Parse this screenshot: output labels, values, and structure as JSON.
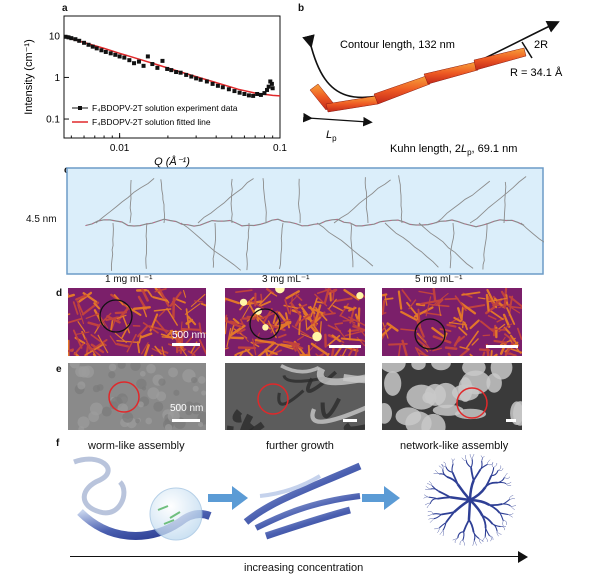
{
  "panels": {
    "a": {
      "label": "a",
      "chart_data": {
        "type": "scatter",
        "xscale": "log",
        "yscale": "log",
        "xlim": [
          0.0045,
          0.1
        ],
        "ylim": [
          0.035,
          30
        ],
        "xlabel": "Q (Å⁻¹)",
        "ylabel": "Intensity (cm⁻¹)",
        "xticks": [
          "0.01",
          "0.1"
        ],
        "yticks": [
          "0.1",
          "1",
          "10"
        ],
        "series": [
          {
            "name": "F₄BDOPV-2T solution experiment data",
            "color": "#111111",
            "x": [
              0.0046,
              0.0048,
              0.005,
              0.0053,
              0.0056,
              0.006,
              0.0064,
              0.0068,
              0.0072,
              0.0077,
              0.0082,
              0.0088,
              0.0094,
              0.01,
              0.0107,
              0.0115,
              0.0123,
              0.0132,
              0.0141,
              0.015,
              0.016,
              0.0172,
              0.0185,
              0.0198,
              0.021,
              0.0225,
              0.024,
              0.026,
              0.028,
              0.03,
              0.032,
              0.035,
              0.038,
              0.041,
              0.044,
              0.048,
              0.052,
              0.056,
              0.06,
              0.064,
              0.068,
              0.072,
              0.076,
              0.08,
              0.083,
              0.085,
              0.087,
              0.089,
              0.09
            ],
            "y": [
              9.5,
              9.2,
              8.8,
              8.3,
              7.6,
              6.8,
              6.1,
              5.5,
              5.0,
              4.5,
              4.1,
              3.8,
              3.5,
              3.2,
              3.0,
              2.6,
              2.2,
              2.4,
              1.9,
              3.2,
              2.1,
              1.7,
              2.5,
              1.6,
              1.5,
              1.35,
              1.3,
              1.15,
              1.05,
              0.95,
              0.88,
              0.8,
              0.7,
              0.63,
              0.58,
              0.52,
              0.47,
              0.43,
              0.4,
              0.37,
              0.36,
              0.4,
              0.38,
              0.42,
              0.5,
              0.6,
              0.8,
              0.7,
              0.55
            ]
          },
          {
            "name": "F₄BDOPV-2T solution fitted line",
            "color": "#e0282a",
            "x": [
              0.0045,
              0.006,
              0.008,
              0.01,
              0.013,
              0.017,
              0.022,
              0.03,
              0.04,
              0.055,
              0.07,
              0.09,
              0.1
            ],
            "y": [
              9.5,
              6.9,
              5.0,
              3.8,
              2.8,
              2.05,
              1.5,
              1.05,
              0.75,
              0.52,
              0.42,
              0.37,
              0.36
            ]
          }
        ]
      }
    },
    "b": {
      "label": "b",
      "contour": "Contour length, 132 nm",
      "twoR": "2R",
      "radius": "R = 34.1 Å",
      "lp": "L",
      "lp_sub": "p",
      "kuhn_a": "Kuhn length, 2",
      "kuhn_l": "L",
      "kuhn_sub": "p",
      "kuhn_b": ", 69.1 nm"
    },
    "c": {
      "label": "c",
      "height": "4.5 nm"
    },
    "d": {
      "label": "d",
      "concentrations": [
        "1 mg mL⁻¹",
        "3 mg mL⁻¹",
        "5 mg mL⁻¹"
      ],
      "scale": "500 nm"
    },
    "e": {
      "label": "e",
      "scale": "500 nm"
    },
    "f": {
      "label": "f",
      "stages": [
        "worm-like assembly",
        "further growth",
        "network-like assembly"
      ],
      "axis": "increasing concentration"
    }
  }
}
